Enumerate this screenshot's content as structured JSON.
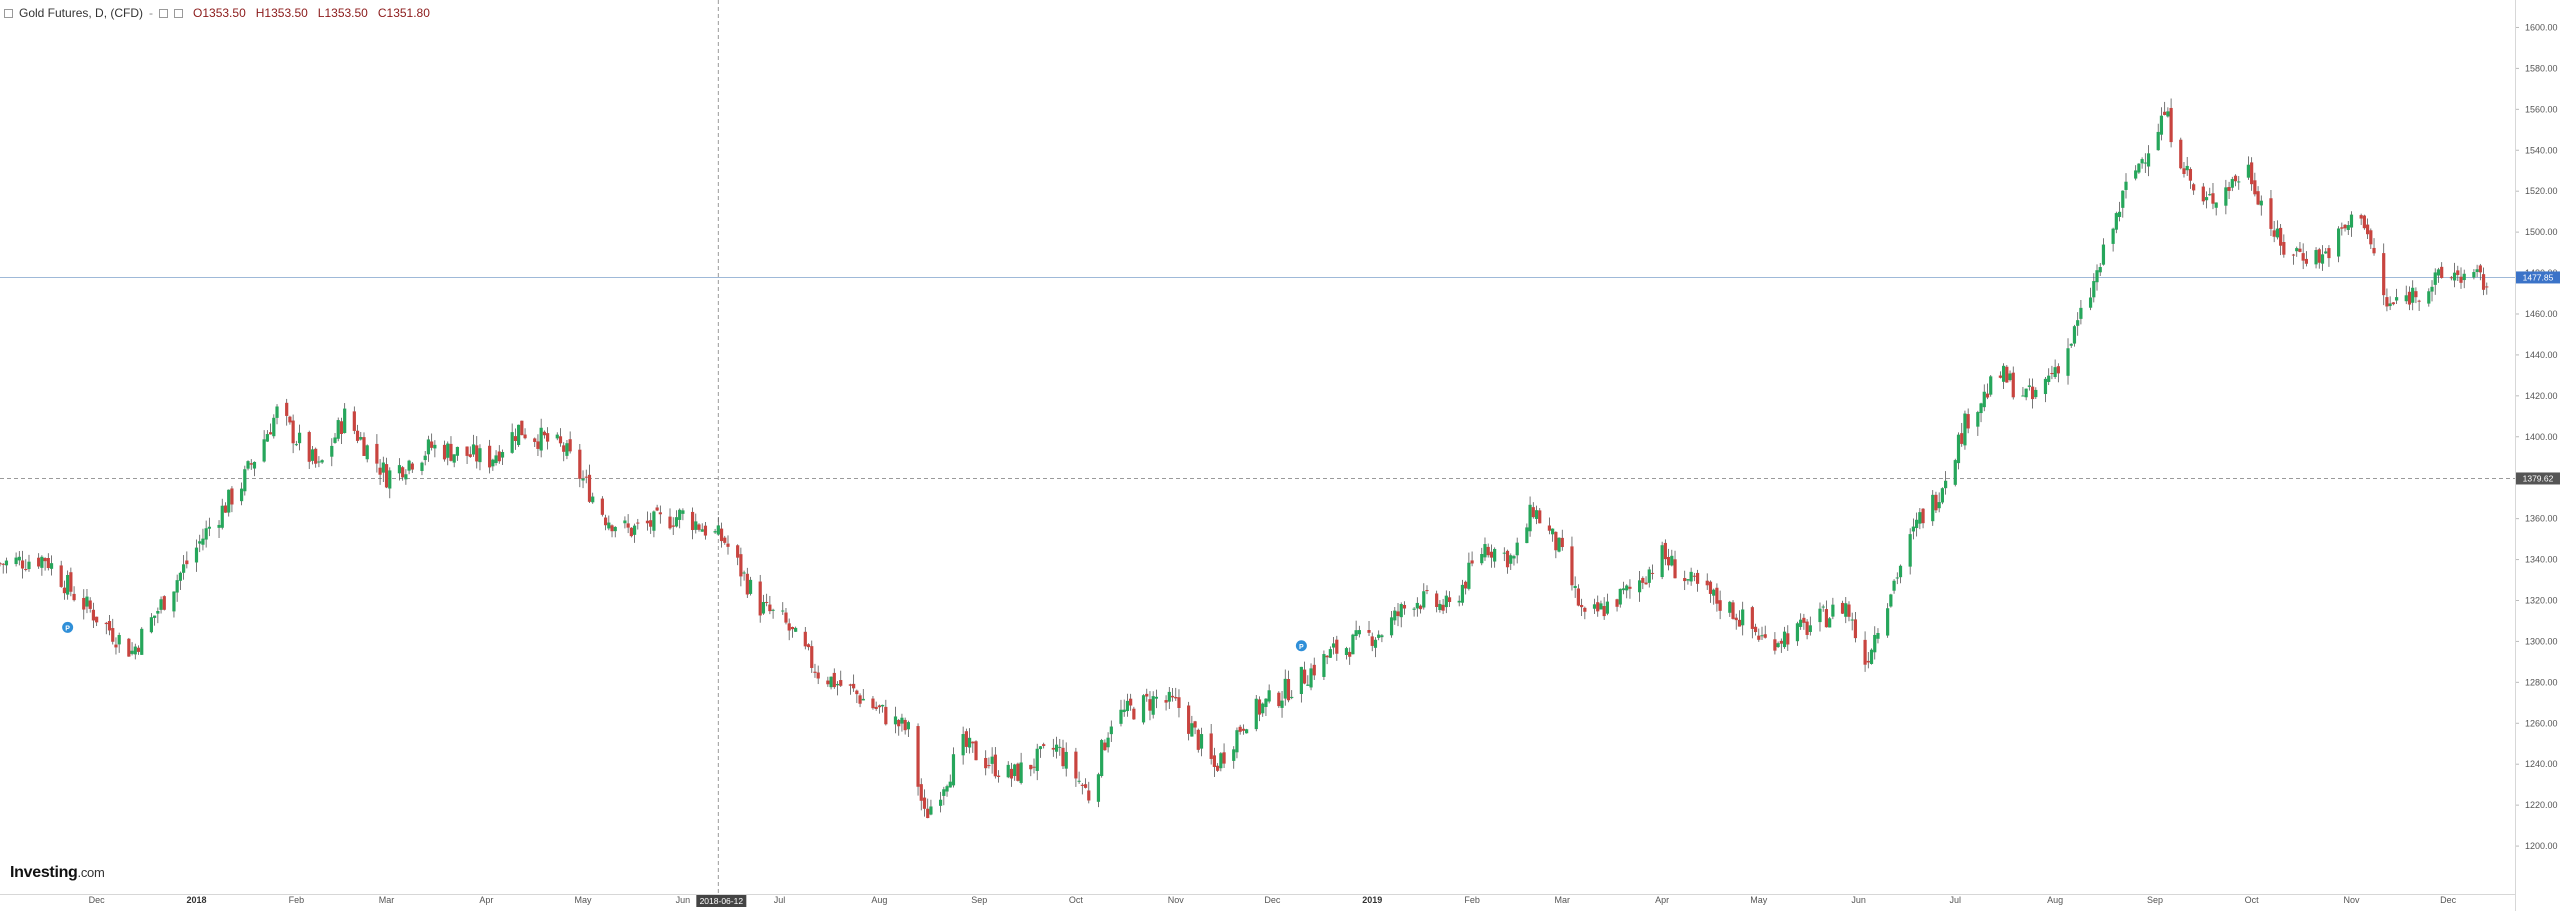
{
  "legend": {
    "symbol": "Gold Futures, D, (CFD)",
    "dash": "-",
    "open": "O1353.50",
    "high": "H1353.50",
    "low": "L1353.50",
    "close": "C1351.80"
  },
  "price_tags": {
    "last": "1477.85",
    "crosshair": "1379.62",
    "crosshair_date": "2018-06-12"
  },
  "logo": {
    "name": "Investing",
    "suffix": ".com"
  },
  "colors": {
    "up": "#26a65b",
    "down": "#c8443f",
    "last_line": "#9fb9d8",
    "last_tag": "#3b73c8",
    "cross_tag": "#555555"
  },
  "chart_data": {
    "type": "candlestick",
    "y_ticks": [
      "1200.00",
      "1220.00",
      "1240.00",
      "1260.00",
      "1280.00",
      "1300.00",
      "1320.00",
      "1340.00",
      "1360.00",
      "1380.00",
      "1400.00",
      "1420.00",
      "1440.00",
      "1460.00",
      "1480.00",
      "1500.00",
      "1520.00",
      "1540.00",
      "1560.00",
      "1580.00",
      "1600.00"
    ],
    "ylim": [
      1180,
      1610
    ],
    "x_ticks": [
      "Dec",
      "2018",
      "Feb",
      "Mar",
      "Apr",
      "May",
      "Jun",
      "Jul",
      "Aug",
      "Sep",
      "Oct",
      "Nov",
      "Dec",
      "2019",
      "Feb",
      "Mar",
      "Apr",
      "May",
      "Jun",
      "Jul",
      "Aug",
      "Sep",
      "Oct",
      "Nov",
      "Dec"
    ],
    "x_tick_dates": [
      "2017-12-01",
      "2018-01-01",
      "2018-02-01",
      "2018-03-01",
      "2018-04-01",
      "2018-05-01",
      "2018-06-01",
      "2018-07-01",
      "2018-08-01",
      "2018-09-01",
      "2018-10-01",
      "2018-11-01",
      "2018-12-01",
      "2019-01-01",
      "2019-02-01",
      "2019-03-01",
      "2019-04-01",
      "2019-05-01",
      "2019-06-01",
      "2019-07-01",
      "2019-08-01",
      "2019-09-01",
      "2019-10-01",
      "2019-11-01",
      "2019-12-01"
    ],
    "x_range": [
      "2017-11-01",
      "2019-12-14"
    ],
    "last_price": 1477.85,
    "crosshair_price": 1379.62,
    "crosshair_date": "2018-06-12",
    "markers": [
      {
        "label": "P",
        "date": "2017-11-22",
        "price": 1301
      },
      {
        "label": "P",
        "date": "2018-12-10",
        "price": 1292
      }
    ],
    "close_path": [
      [
        "2017-11-01",
        1338
      ],
      [
        "2017-11-15",
        1341
      ],
      [
        "2017-11-24",
        1323
      ],
      [
        "2017-12-12",
        1295
      ],
      [
        "2017-12-21",
        1318
      ],
      [
        "2018-01-05",
        1356
      ],
      [
        "2018-01-15",
        1377
      ],
      [
        "2018-01-26",
        1412
      ],
      [
        "2018-02-08",
        1384
      ],
      [
        "2018-02-16",
        1410
      ],
      [
        "2018-03-01",
        1381
      ],
      [
        "2018-03-15",
        1395
      ],
      [
        "2018-04-02",
        1389
      ],
      [
        "2018-04-11",
        1404
      ],
      [
        "2018-04-25",
        1394
      ],
      [
        "2018-05-08",
        1361
      ],
      [
        "2018-05-15",
        1354
      ],
      [
        "2018-06-01",
        1362
      ],
      [
        "2018-06-14",
        1349
      ],
      [
        "2018-06-25",
        1317
      ],
      [
        "2018-07-02",
        1310
      ],
      [
        "2018-07-13",
        1285
      ],
      [
        "2018-07-25",
        1274
      ],
      [
        "2018-08-10",
        1256
      ],
      [
        "2018-08-15",
        1214
      ],
      [
        "2018-08-27",
        1249
      ],
      [
        "2018-09-11",
        1234
      ],
      [
        "2018-09-25",
        1248
      ],
      [
        "2018-10-05",
        1225
      ],
      [
        "2018-10-12",
        1262
      ],
      [
        "2018-10-26",
        1272
      ],
      [
        "2018-11-02",
        1268
      ],
      [
        "2018-11-13",
        1238
      ],
      [
        "2018-11-23",
        1263
      ],
      [
        "2018-12-07",
        1278
      ],
      [
        "2018-12-20",
        1295
      ],
      [
        "2019-01-04",
        1305
      ],
      [
        "2019-01-14",
        1321
      ],
      [
        "2019-01-25",
        1316
      ],
      [
        "2019-02-05",
        1347
      ],
      [
        "2019-02-14",
        1340
      ],
      [
        "2019-02-20",
        1365
      ],
      [
        "2019-02-28",
        1345
      ],
      [
        "2019-03-08",
        1310
      ],
      [
        "2019-03-22",
        1325
      ],
      [
        "2019-04-01",
        1342
      ],
      [
        "2019-04-10",
        1328
      ],
      [
        "2019-04-23",
        1315
      ],
      [
        "2019-05-03",
        1300
      ],
      [
        "2019-05-15",
        1306
      ],
      [
        "2019-05-28",
        1318
      ],
      [
        "2019-06-03",
        1290
      ],
      [
        "2019-06-10",
        1322
      ],
      [
        "2019-06-20",
        1360
      ],
      [
        "2019-06-25",
        1370
      ],
      [
        "2019-07-05",
        1410
      ],
      [
        "2019-07-15",
        1430
      ],
      [
        "2019-07-25",
        1418
      ],
      [
        "2019-08-05",
        1443
      ],
      [
        "2019-08-12",
        1470
      ],
      [
        "2019-08-23",
        1521
      ],
      [
        "2019-09-04",
        1558
      ],
      [
        "2019-09-15",
        1512
      ],
      [
        "2019-09-30",
        1531
      ],
      [
        "2019-10-10",
        1492
      ],
      [
        "2019-10-23",
        1488
      ],
      [
        "2019-11-04",
        1511
      ],
      [
        "2019-11-12",
        1463
      ],
      [
        "2019-11-22",
        1472
      ],
      [
        "2019-12-03",
        1480
      ],
      [
        "2019-12-13",
        1475
      ]
    ]
  }
}
